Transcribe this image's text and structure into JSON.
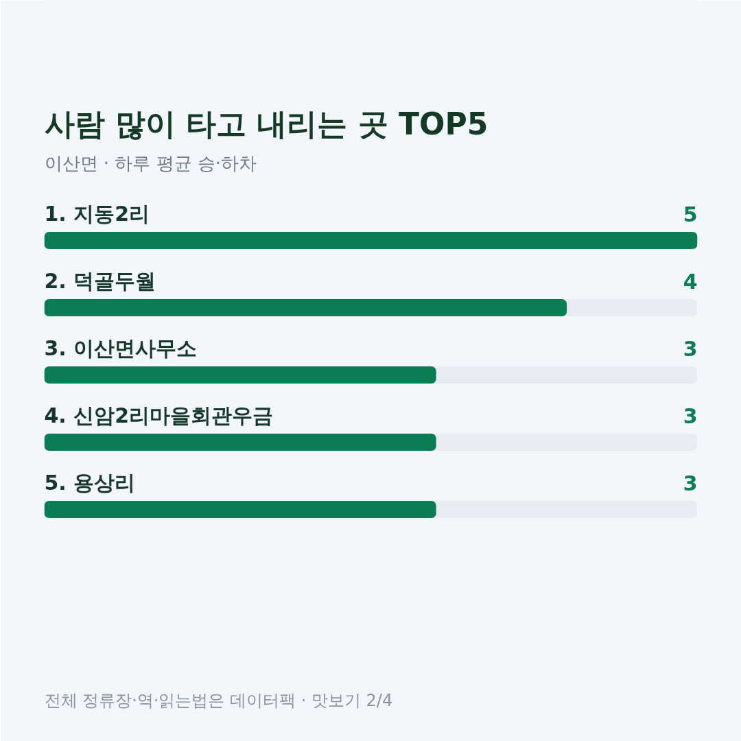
{
  "chart_data": {
    "type": "bar",
    "orientation": "horizontal",
    "title": "사람 많이 타고 내리는 곳 TOP5",
    "subtitle": "이산면 · 하루 평균 승·하차",
    "annotations": [
      "전체 정류장·역·읽는법은 데이터팩 · 맛보기 2/4"
    ],
    "categories": [
      "1. 지동2리",
      "2. 덕골두월",
      "3. 이산면사무소",
      "4. 신암2리마을회관우금",
      "5. 용상리"
    ],
    "values": [
      5,
      4,
      3,
      3,
      3
    ],
    "color": "#0a7d55",
    "xlim": [
      0,
      5
    ],
    "data_labels": true,
    "tick_labels": false
  }
}
